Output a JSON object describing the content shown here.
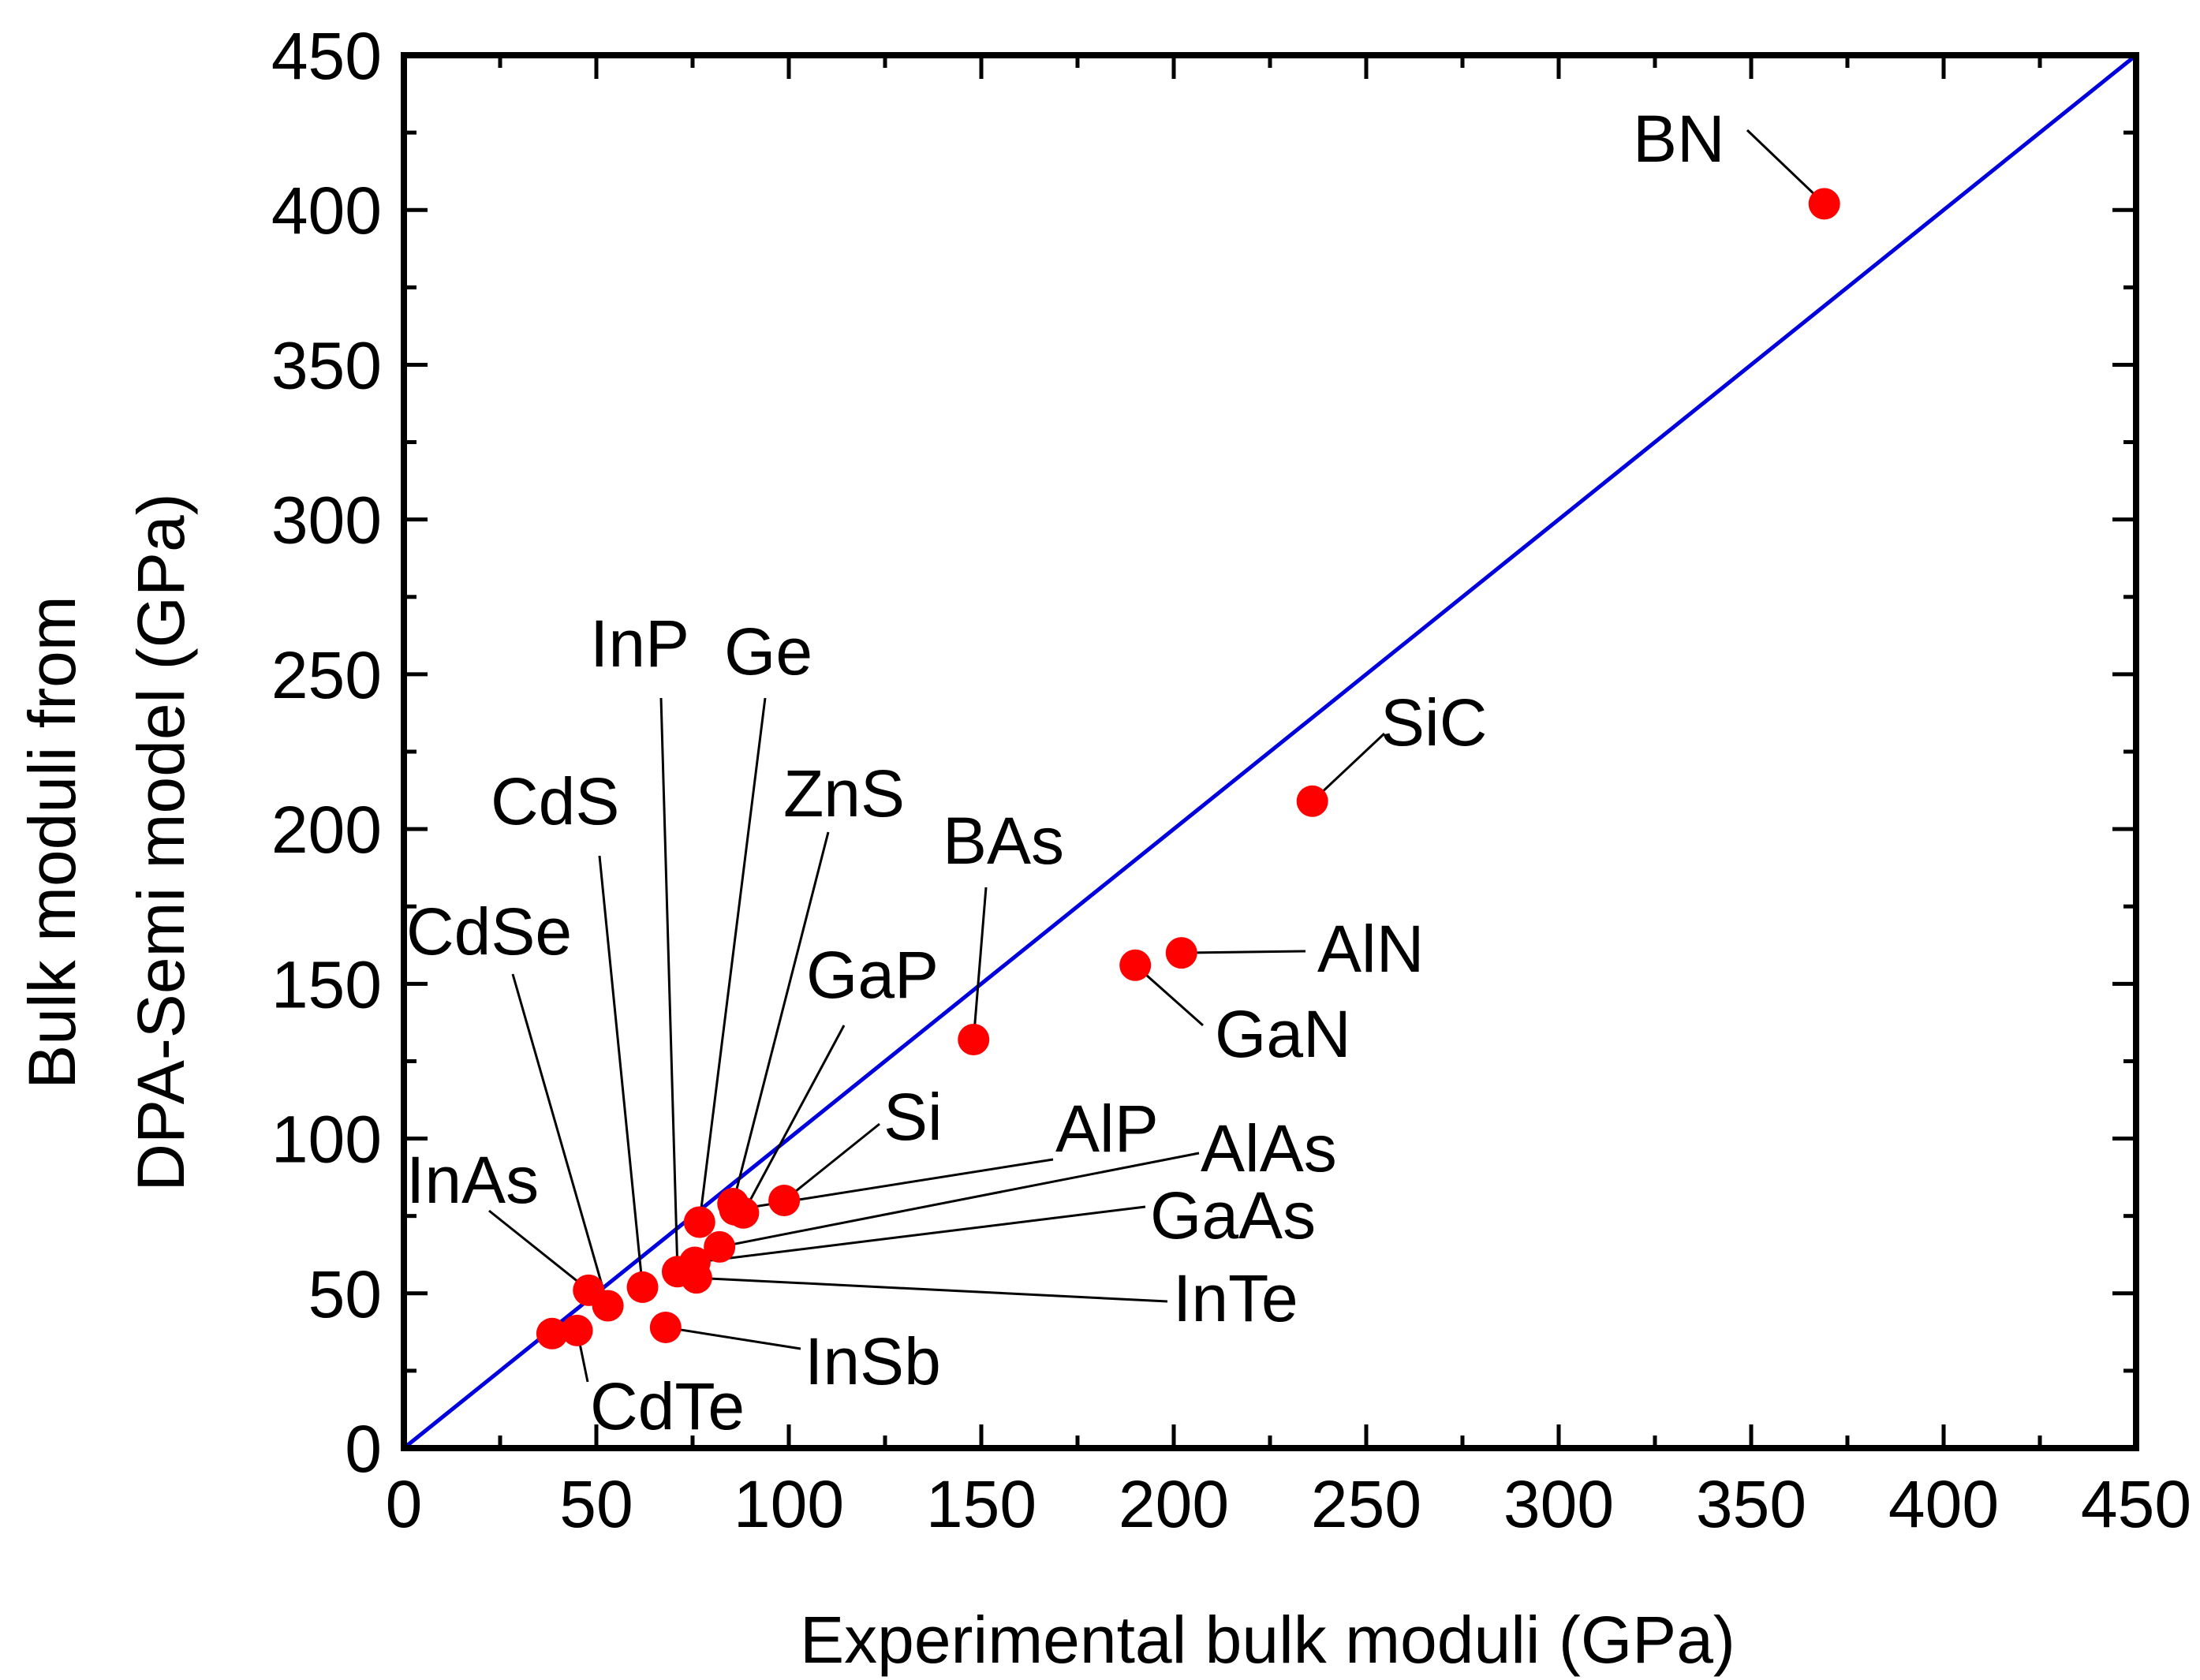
{
  "chart_data": {
    "type": "scatter",
    "title": "",
    "xlabel": "Experimental bulk moduli (GPa)",
    "ylabel_line1": "Bulk moduli from",
    "ylabel_line2": "DPA-Semi model (GPa)",
    "xlim": [
      0,
      450
    ],
    "ylim": [
      0,
      450
    ],
    "xticks": [
      0,
      50,
      100,
      150,
      200,
      250,
      300,
      350,
      400,
      450
    ],
    "yticks": [
      0,
      50,
      100,
      150,
      200,
      250,
      300,
      350,
      400,
      450
    ],
    "grid": false,
    "legend": "none",
    "reference_line": {
      "description": "y = x",
      "color": "#0000dd"
    },
    "marker_color": "#ff0000",
    "points": [
      {
        "label": "BN",
        "x": 369,
        "y": 402
      },
      {
        "label": "SiC",
        "x": 236,
        "y": 209
      },
      {
        "label": "AlN",
        "x": 202,
        "y": 160
      },
      {
        "label": "GaN",
        "x": 190,
        "y": 156
      },
      {
        "label": "BAs",
        "x": 148,
        "y": 132
      },
      {
        "label": "Si",
        "x": 98.8,
        "y": 80
      },
      {
        "label": "GaP",
        "x": 88.2,
        "y": 76
      },
      {
        "label": "ZnS",
        "x": 85.5,
        "y": 79
      },
      {
        "label": "Ge",
        "x": 76.8,
        "y": 73
      },
      {
        "label": "InP",
        "x": 71.1,
        "y": 57
      },
      {
        "label": "AlP",
        "x": 86,
        "y": 77
      },
      {
        "label": "AlAs",
        "x": 82,
        "y": 65
      },
      {
        "label": "GaAs",
        "x": 75.6,
        "y": 60
      },
      {
        "label": "InTe",
        "x": 76,
        "y": 55
      },
      {
        "label": "CdS",
        "x": 62,
        "y": 52
      },
      {
        "label": "CdSe",
        "x": 53,
        "y": 46
      },
      {
        "label": "InAs",
        "x": 48,
        "y": 51
      },
      {
        "label": "InSb",
        "x": 68,
        "y": 39
      },
      {
        "label": "CdTe",
        "x": 45,
        "y": 38
      },
      {
        "label": "",
        "x": 38.5,
        "y": 37
      }
    ]
  }
}
